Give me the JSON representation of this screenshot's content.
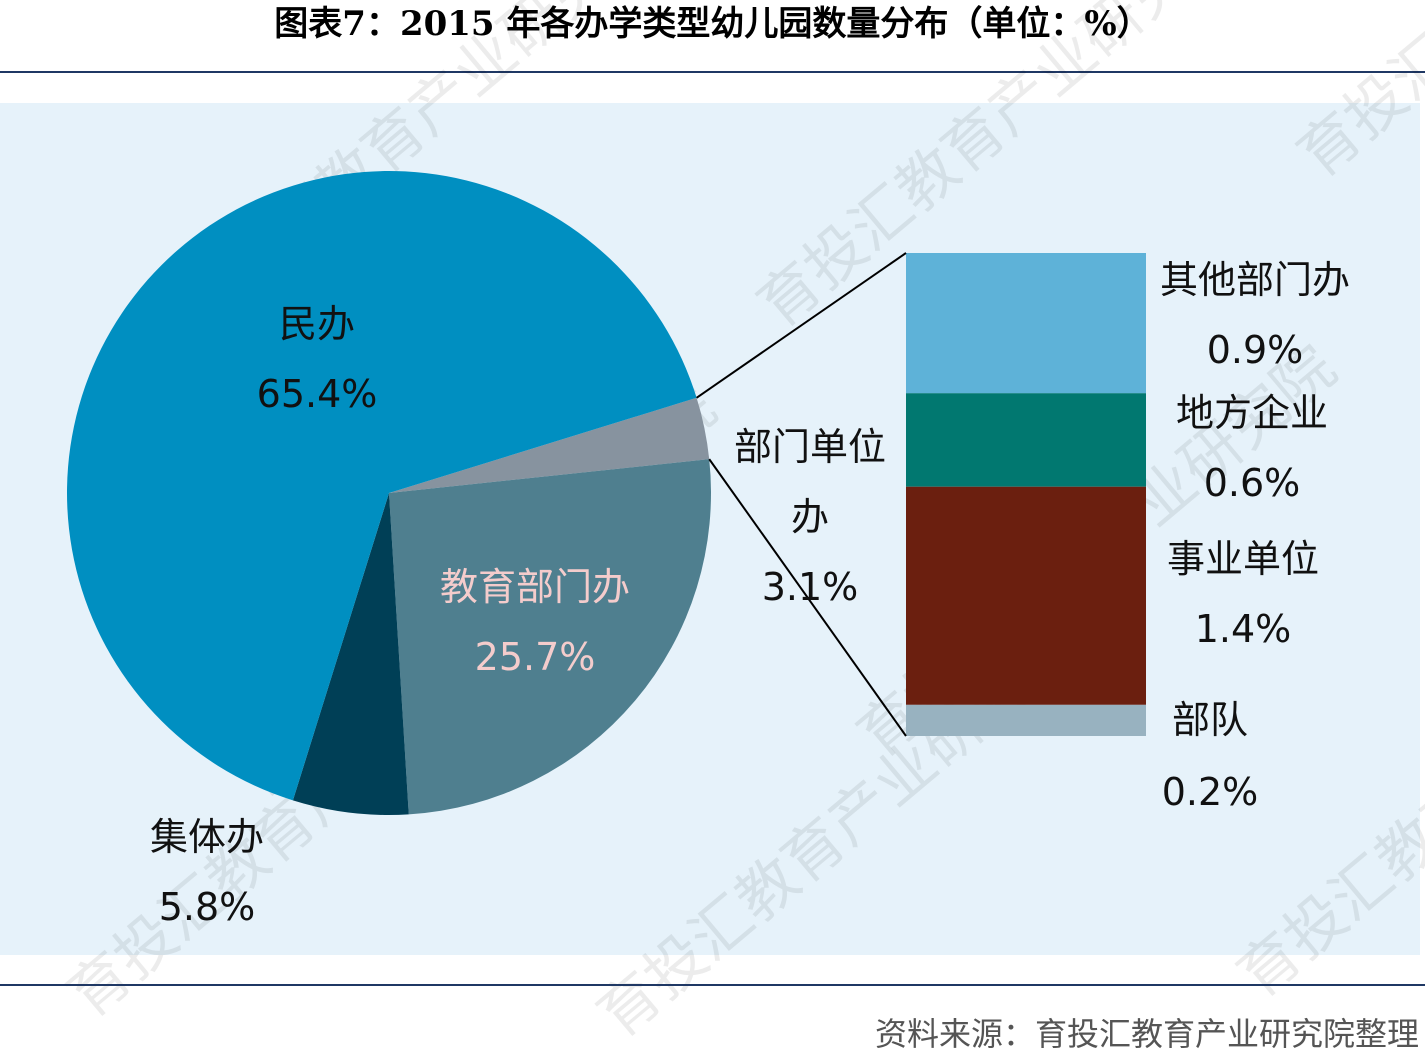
{
  "title": "图表7：2015 年各办学类型幼儿园数量分布（单位：%）",
  "source": "资料来源：育投汇教育产业研究院整理",
  "watermark": "育投汇教育产业研究院",
  "chart_data": {
    "type": "pie",
    "unit": "%",
    "pie": {
      "slices": [
        {
          "name": "民办",
          "value": 65.4,
          "label": "65.4%",
          "color": "#008fc1"
        },
        {
          "name": "部门单位办",
          "value": 3.1,
          "label": "3.1%",
          "color": "#87939f"
        },
        {
          "name": "教育部门办",
          "value": 25.7,
          "label": "25.7%",
          "color": "#4f7f8f"
        },
        {
          "name": "集体办",
          "value": 5.8,
          "label": "5.8%",
          "color": "#003f56"
        }
      ]
    },
    "breakdown": {
      "parent": "部门单位办",
      "type": "stacked-bar",
      "segments": [
        {
          "name": "其他部门办",
          "value": 0.9,
          "label": "0.9%",
          "color": "#5eb2d8"
        },
        {
          "name": "地方企业",
          "value": 0.6,
          "label": "0.6%",
          "color": "#017870"
        },
        {
          "name": "事业单位",
          "value": 1.4,
          "label": "1.4%",
          "color": "#6b1f0f"
        },
        {
          "name": "部队",
          "value": 0.2,
          "label": "0.2%",
          "color": "#98b2c0"
        }
      ]
    }
  }
}
